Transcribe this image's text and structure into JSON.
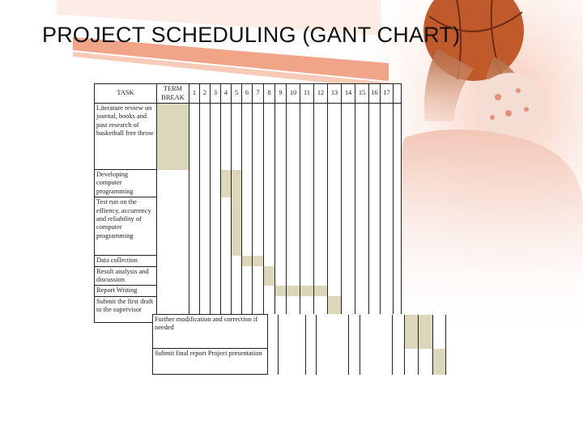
{
  "slide": {
    "title": "PROJECT SCHEDULING (GANT CHART)"
  },
  "gantt": {
    "task_header": "TASK",
    "period_headers": [
      "TERM BREAK",
      "1",
      "2",
      "3",
      "4",
      "5",
      "6",
      "7",
      "8",
      "9",
      "10",
      "11",
      "12",
      "13",
      "14",
      "15",
      "16",
      "17"
    ],
    "tasks": [
      {
        "name": "Literature review on journal, books and past research of basketball free throw",
        "active": [
          0
        ]
      },
      {
        "name": "Developing computer programming",
        "active": [
          4,
          5
        ]
      },
      {
        "name": "Test run on the effiency, accurrency and reliability of computer programming",
        "active": [
          5
        ]
      },
      {
        "name": "Data collection",
        "active": [
          6,
          7
        ]
      },
      {
        "name": "Result analysis and discussion",
        "active": [
          8
        ]
      },
      {
        "name": "Report Writing",
        "active": [
          9,
          10,
          11,
          12
        ]
      },
      {
        "name": "Submit the first draft to the supervisor",
        "active": [
          13
        ]
      }
    ],
    "continued_tasks": [
      {
        "name": "Further modification and correction if needed",
        "active": [
          15,
          16
        ]
      },
      {
        "name": "Submit final report Project presentation",
        "active": [
          17
        ]
      }
    ]
  },
  "colors": {
    "bar_fill": "#dcd6bb",
    "accent_stripe": "#f0a488"
  }
}
